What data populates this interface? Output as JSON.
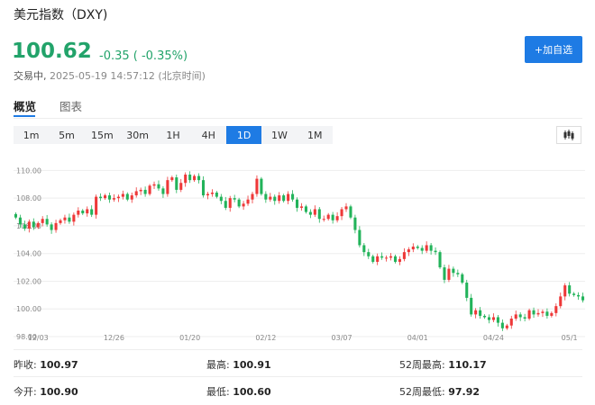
{
  "header": {
    "title": "美元指数（DXY)",
    "price": "100.62",
    "change": "-0.35 ( -0.35%)",
    "status": "交易中,",
    "timestamp": "2025-05-19 14:57:12 (北京时间)",
    "add_label": "+加自选"
  },
  "tabs": [
    {
      "label": "概览"
    },
    {
      "label": "图表"
    }
  ],
  "ranges": [
    "1m",
    "5m",
    "15m",
    "30m",
    "1H",
    "4H",
    "1D",
    "1W",
    "1M"
  ],
  "active_range": "1D",
  "colors": {
    "up": "#ee3838",
    "down": "#22b35a",
    "accent": "#1e7be4"
  },
  "icons": {
    "chart_type": "candlestick-icon"
  },
  "stats": {
    "prev_close_label": "昨收:",
    "prev_close": "100.97",
    "high_label": "最高:",
    "high": "100.91",
    "high52_label": "52周最高:",
    "high52": "110.17",
    "open_label": "今开:",
    "open": "100.90",
    "low_label": "最低:",
    "low": "100.60",
    "low52_label": "52周最低:",
    "low52": "97.92"
  },
  "chart_data": {
    "type": "candlestick",
    "ylim": [
      98.0,
      111.0
    ],
    "y_ticks": [
      "110.00",
      "108.00",
      "106.00",
      "104.00",
      "102.00",
      "100.00",
      "98.00"
    ],
    "x_ticks": [
      {
        "label": "12/03",
        "index": 5
      },
      {
        "label": "12/26",
        "index": 22
      },
      {
        "label": "01/20",
        "index": 39
      },
      {
        "label": "02/12",
        "index": 56
      },
      {
        "label": "03/07",
        "index": 73
      },
      {
        "label": "04/01",
        "index": 90
      },
      {
        "label": "04/24",
        "index": 107
      },
      {
        "label": "05/1",
        "index": 124
      }
    ],
    "grid": true,
    "close": [
      106.6,
      106.1,
      105.8,
      106.3,
      105.9,
      106.2,
      106.5,
      106.1,
      105.7,
      106.2,
      106.4,
      106.6,
      106.3,
      106.8,
      107.1,
      106.9,
      107.2,
      106.8,
      108.1,
      108.0,
      108.2,
      107.9,
      108.0,
      108.1,
      108.3,
      107.9,
      108.2,
      108.5,
      108.6,
      108.3,
      108.9,
      109.0,
      108.7,
      108.3,
      109.3,
      109.5,
      108.6,
      109.1,
      109.7,
      109.3,
      109.6,
      109.3,
      108.2,
      108.3,
      108.4,
      108.1,
      107.8,
      107.3,
      108.0,
      107.9,
      107.4,
      107.6,
      107.9,
      108.3,
      109.4,
      108.3,
      107.9,
      108.1,
      107.8,
      108.2,
      107.8,
      108.3,
      107.9,
      107.3,
      107.4,
      107.0,
      106.8,
      107.2,
      106.5,
      106.5,
      106.8,
      106.4,
      106.7,
      107.2,
      107.4,
      106.6,
      105.7,
      104.6,
      104.1,
      103.8,
      103.4,
      103.8,
      103.7,
      103.7,
      103.8,
      103.4,
      103.6,
      104.1,
      104.3,
      104.5,
      104.4,
      104.2,
      104.6,
      104.2,
      104.1,
      103.0,
      102.1,
      102.9,
      102.6,
      102.5,
      101.9,
      100.8,
      99.6,
      99.9,
      99.5,
      99.4,
      99.2,
      99.4,
      99.0,
      98.6,
      98.8,
      99.3,
      99.6,
      99.4,
      99.3,
      99.9,
      99.6,
      99.7,
      99.8,
      99.5,
      99.7,
      100.2,
      100.9,
      101.7,
      101.1,
      101.0,
      100.9,
      100.62
    ]
  }
}
